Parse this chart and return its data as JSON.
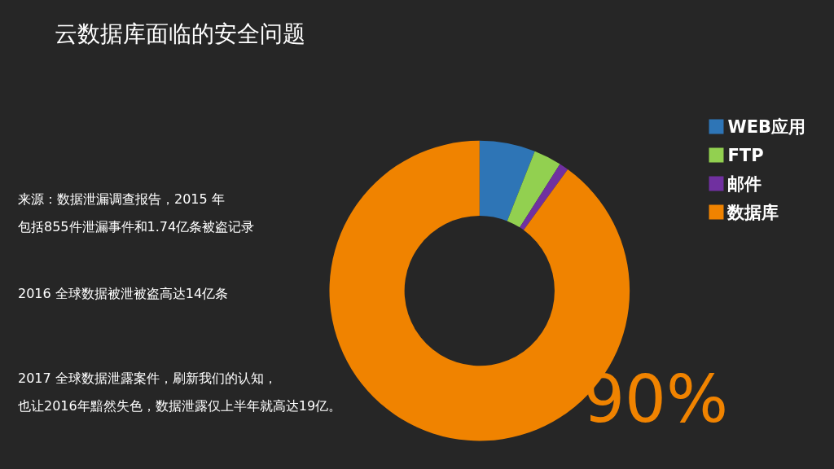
{
  "chart_data": {
    "type": "donut",
    "title": "云数据库面临的安全问题",
    "categories": [
      "WEB应用",
      "FTP",
      "邮件",
      "数据库"
    ],
    "values": [
      6,
      3,
      1,
      90
    ],
    "colors": [
      "#2e75b6",
      "#92d050",
      "#7030a0",
      "#f08300"
    ],
    "value_labels": [
      null,
      null,
      null,
      "90%"
    ],
    "legend": "top right",
    "annotations": [
      "来源：数据泄漏调查报告，2015 年",
      "包括855件泄漏事件和1.74亿条被盗记录",
      "2016 全球数据被泄被盗高达14亿条",
      "2017 全球数据泄露案件，刷新我们的认知，",
      "也让2016年黯然失色，数据泄露仅上半年就高达19亿。"
    ]
  }
}
